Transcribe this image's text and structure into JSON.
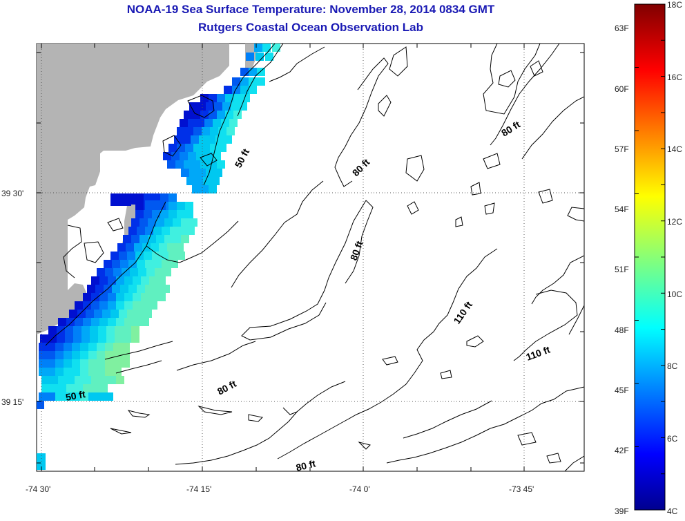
{
  "title": {
    "line1": "NOAA-19 Sea Surface Temperature:  November 28, 2014 0834 GMT",
    "line2": "Rutgers Coastal Ocean Observation Lab"
  },
  "axes": {
    "x_ticks": [
      "-74 30'",
      "-74 15'",
      "-74 0'",
      "-73 45'"
    ],
    "y_ticks": [
      "39 30'",
      "39 15'"
    ]
  },
  "contour_labels": [
    "50 ft",
    "80 ft",
    "80 ft",
    "80 ft",
    "110 ft",
    "110 ft",
    "80 ft",
    "50 ft",
    "80 ft"
  ],
  "colorbar": {
    "celsius": [
      "18C",
      "16C",
      "14C",
      "12C",
      "10C",
      "8C",
      "6C",
      "4C"
    ],
    "fahrenheit": [
      "63F",
      "60F",
      "57F",
      "54F",
      "51F",
      "48F",
      "45F",
      "42F",
      "39F"
    ],
    "range_c": [
      4,
      18
    ]
  },
  "colors": {
    "land": "#b4b4b4",
    "title": "#1a1ab4"
  }
}
